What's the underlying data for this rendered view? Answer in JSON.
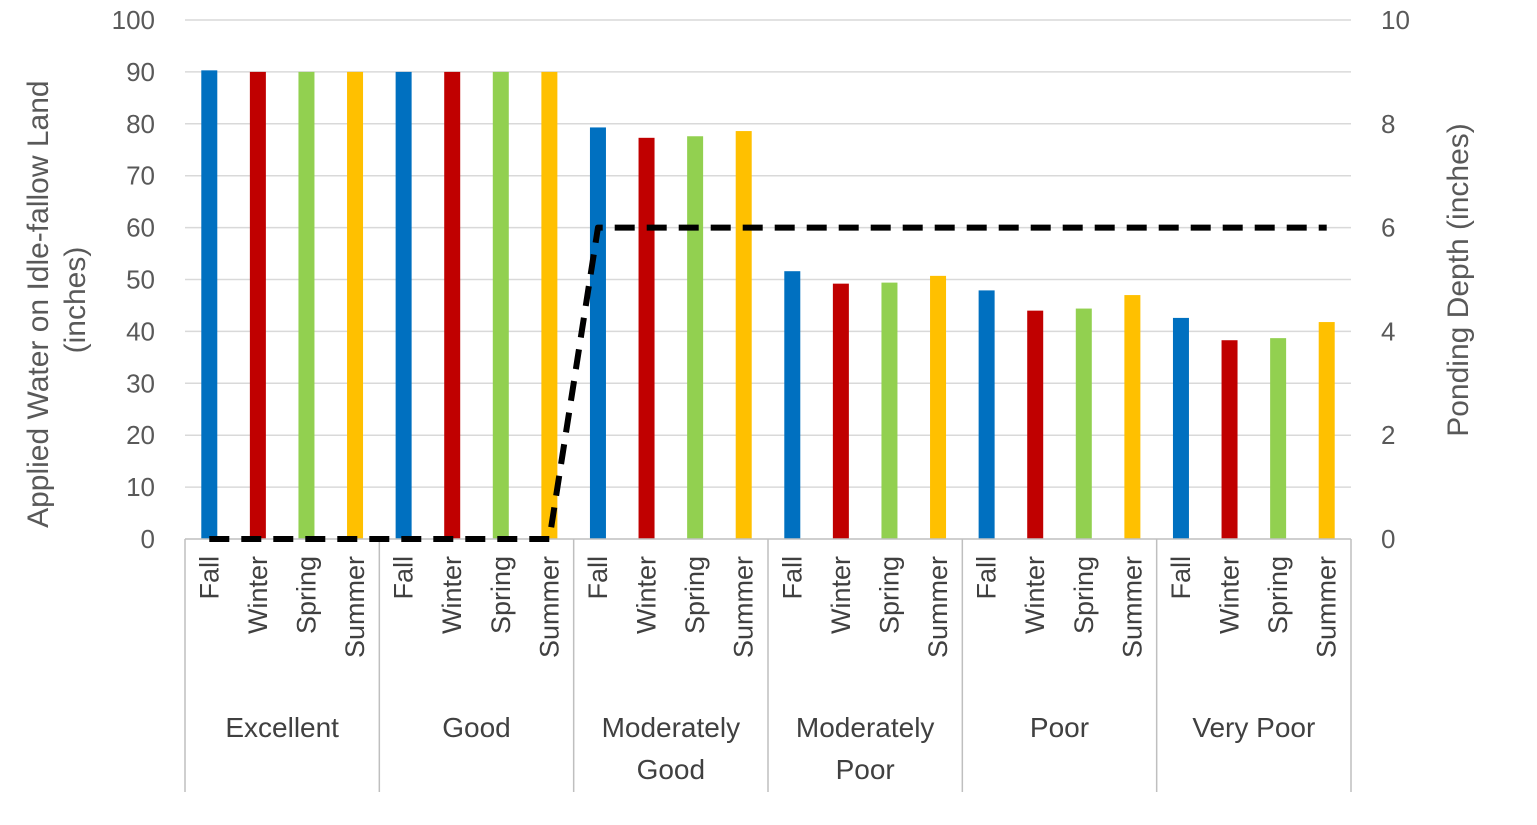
{
  "chart_data": {
    "type": "bar",
    "title": "",
    "ylabel": "Applied Water on Idle-fallow Land (inches)",
    "ylabel_lines": [
      "Applied Water on Idle-fallow Land",
      "(inches)"
    ],
    "y2label": "Ponding Depth (inches)",
    "ylim": [
      0,
      100
    ],
    "y2lim": [
      0,
      10
    ],
    "yticks": [
      "0",
      "10",
      "20",
      "30",
      "40",
      "50",
      "60",
      "70",
      "80",
      "90",
      "100"
    ],
    "y2ticks": [
      "0",
      "2",
      "4",
      "6",
      "8",
      "10"
    ],
    "grid": true,
    "groups": [
      {
        "name_lines": [
          "Excellent"
        ]
      },
      {
        "name_lines": [
          "Good"
        ]
      },
      {
        "name_lines": [
          "Moderately",
          "Good"
        ]
      },
      {
        "name_lines": [
          "Moderately",
          "Poor"
        ]
      },
      {
        "name_lines": [
          "Poor"
        ]
      },
      {
        "name_lines": [
          "Very Poor"
        ]
      }
    ],
    "seasons": [
      "Fall",
      "Winter",
      "Spring",
      "Summer"
    ],
    "season_colors": [
      "#0070C0",
      "#C00000",
      "#92D050",
      "#FFC000"
    ],
    "values": [
      [
        90.3,
        90.0,
        90.0,
        90.0
      ],
      [
        90.0,
        90.0,
        90.0,
        90.0
      ],
      [
        79.3,
        77.3,
        77.6,
        78.6
      ],
      [
        51.6,
        49.2,
        49.4,
        50.7
      ],
      [
        47.9,
        44.0,
        44.4,
        47.0
      ],
      [
        42.6,
        38.3,
        38.7,
        41.8
      ]
    ],
    "ponding_series": {
      "name": "Ponding Depth",
      "color": "#000000",
      "style": "dashed",
      "values": [
        [
          0,
          0,
          0,
          0
        ],
        [
          0,
          0,
          0,
          0
        ],
        [
          6,
          6,
          6,
          6
        ],
        [
          6,
          6,
          6,
          6
        ],
        [
          6,
          6,
          6,
          6
        ],
        [
          6,
          6,
          6,
          6
        ]
      ]
    }
  }
}
